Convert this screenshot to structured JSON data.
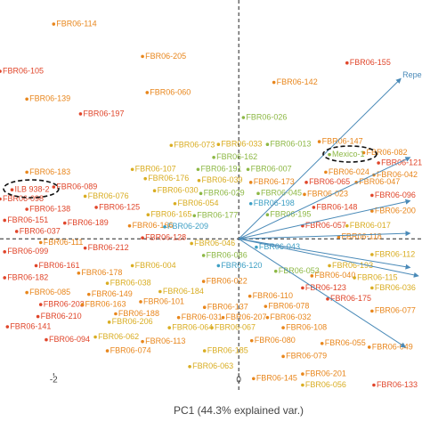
{
  "chart_data": {
    "type": "scatter",
    "xlabel": "PC1 (44.3% explained var.)",
    "xlim": [
      -2.58,
      1.98
    ],
    "ylim": [
      -1.44,
      2.58
    ],
    "xticks": [
      -2,
      0
    ],
    "arrow_color": "#4a8ab8",
    "arrows": [
      {
        "label": "Repe",
        "x": 1.75,
        "y": 1.73
      },
      {
        "x": 1.85,
        "y": 0.88
      },
      {
        "x": 1.85,
        "y": 0.41
      },
      {
        "x": 1.85,
        "y": 0.06
      },
      {
        "x": 1.85,
        "y": -0.31
      },
      {
        "x": 1.94,
        "y": -0.4
      },
      {
        "x": 1.8,
        "y": -1.17
      }
    ],
    "points": [
      {
        "label": "FBR06-114",
        "x": -2.0,
        "y": 2.32,
        "color": "#e8861c"
      },
      {
        "label": "FBR06-205",
        "x": -1.04,
        "y": 1.97,
        "color": "#e8861c"
      },
      {
        "label": "FBR06-105",
        "x": -2.58,
        "y": 1.81,
        "color": "#e0452a"
      },
      {
        "label": "FBR06-060",
        "x": -0.99,
        "y": 1.58,
        "color": "#e8861c"
      },
      {
        "label": "FBR06-139",
        "x": -2.29,
        "y": 1.51,
        "color": "#e8861c"
      },
      {
        "label": "FBR06-197",
        "x": -1.71,
        "y": 1.35,
        "color": "#e0452a"
      },
      {
        "label": "FBR06-155",
        "x": 1.17,
        "y": 1.9,
        "color": "#e0452a"
      },
      {
        "label": "FBR06-142",
        "x": 0.38,
        "y": 1.69,
        "color": "#e8861c"
      },
      {
        "label": "FBR06-026",
        "x": 0.05,
        "y": 1.31,
        "color": "#8db845"
      },
      {
        "label": "FBR06-073",
        "x": -0.73,
        "y": 1.01,
        "color": "#d9ad22"
      },
      {
        "label": "FBR06-033",
        "x": -0.22,
        "y": 1.02,
        "color": "#d9ad22"
      },
      {
        "label": "FBR06-013",
        "x": 0.31,
        "y": 1.02,
        "color": "#8db845"
      },
      {
        "label": "FBR06-147",
        "x": 0.87,
        "y": 1.05,
        "color": "#e8861c"
      },
      {
        "label": "FBR06-082",
        "x": 1.35,
        "y": 0.93,
        "color": "#e8861c"
      },
      {
        "label": "FBR06-183",
        "x": -2.29,
        "y": 0.72,
        "color": "#e8861c"
      },
      {
        "label": "FBR06-107",
        "x": -1.15,
        "y": 0.75,
        "color": "#d9ad22"
      },
      {
        "label": "FBR06-191",
        "x": -0.44,
        "y": 0.75,
        "color": "#8db845"
      },
      {
        "label": "FBR06-162",
        "x": -0.27,
        "y": 0.88,
        "color": "#8db845"
      },
      {
        "label": "FBR06-007",
        "x": 0.1,
        "y": 0.75,
        "color": "#8db845"
      },
      {
        "label": "FBR06-024",
        "x": 0.94,
        "y": 0.72,
        "color": "#e8861c"
      },
      {
        "label": "FBR06-121",
        "x": 1.51,
        "y": 0.82,
        "color": "#e0452a"
      },
      {
        "label": "FBR06-042",
        "x": 1.46,
        "y": 0.69,
        "color": "#e8861c"
      },
      {
        "label": "FBR06-176",
        "x": -1.01,
        "y": 0.65,
        "color": "#d9ad22"
      },
      {
        "label": "FBR06-039",
        "x": -0.43,
        "y": 0.63,
        "color": "#d9ad22"
      },
      {
        "label": "FBR06-173",
        "x": 0.13,
        "y": 0.61,
        "color": "#e8861c"
      },
      {
        "label": "FBR06-065",
        "x": 0.73,
        "y": 0.61,
        "color": "#e0452a"
      },
      {
        "label": "FBR06-047",
        "x": 1.27,
        "y": 0.61,
        "color": "#e8861c"
      },
      {
        "label": "FBR06-089",
        "x": -2.0,
        "y": 0.56,
        "color": "#e0452a"
      },
      {
        "label": "FBR06-076",
        "x": -1.66,
        "y": 0.46,
        "color": "#d9ad22"
      },
      {
        "label": "FBR06-030",
        "x": -0.91,
        "y": 0.52,
        "color": "#d9ad22"
      },
      {
        "label": "FBR06-029",
        "x": -0.41,
        "y": 0.49,
        "color": "#8db845"
      },
      {
        "label": "FBR06-045",
        "x": 0.21,
        "y": 0.49,
        "color": "#8db845"
      },
      {
        "label": "FBR06-023",
        "x": 0.71,
        "y": 0.48,
        "color": "#e8861c"
      },
      {
        "label": "FBR06-096",
        "x": 1.44,
        "y": 0.47,
        "color": "#e0452a"
      },
      {
        "label": "FBR06-098",
        "x": -2.58,
        "y": 0.43,
        "color": "#e0452a"
      },
      {
        "label": "FBR06-138",
        "x": -2.29,
        "y": 0.32,
        "color": "#e0452a"
      },
      {
        "label": "FBR06-125",
        "x": -1.54,
        "y": 0.34,
        "color": "#e0452a"
      },
      {
        "label": "FBR06-054",
        "x": -0.69,
        "y": 0.38,
        "color": "#d9ad22"
      },
      {
        "label": "FBR06-198",
        "x": 0.13,
        "y": 0.38,
        "color": "#3d9fc4"
      },
      {
        "label": "FBR06-148",
        "x": 0.81,
        "y": 0.34,
        "color": "#e0452a"
      },
      {
        "label": "FBR06-200",
        "x": 1.44,
        "y": 0.3,
        "color": "#e8861c"
      },
      {
        "label": "FBR06-151",
        "x": -2.53,
        "y": 0.2,
        "color": "#e0452a"
      },
      {
        "label": "FBR06-189",
        "x": -1.88,
        "y": 0.17,
        "color": "#e0452a"
      },
      {
        "label": "FBR06-165",
        "x": -0.98,
        "y": 0.26,
        "color": "#d9ad22"
      },
      {
        "label": "FBR06-177",
        "x": -0.48,
        "y": 0.25,
        "color": "#8db845"
      },
      {
        "label": "FBR06-195",
        "x": 0.31,
        "y": 0.26,
        "color": "#8db845"
      },
      {
        "label": "FBR06-037",
        "x": -2.4,
        "y": 0.08,
        "color": "#e0452a"
      },
      {
        "label": "FBR06-166",
        "x": -1.18,
        "y": 0.14,
        "color": "#e8861c"
      },
      {
        "label": "FBR06-209",
        "x": -0.8,
        "y": 0.13,
        "color": "#3d9fc4"
      },
      {
        "label": "FBR06-057",
        "x": 0.69,
        "y": 0.14,
        "color": "#e0452a"
      },
      {
        "label": "FBR06-017",
        "x": 1.17,
        "y": 0.14,
        "color": "#d9ad22"
      },
      {
        "label": "FBR06-128",
        "x": -1.04,
        "y": 0.01,
        "color": "#e0452a"
      },
      {
        "label": "FBR06-046",
        "x": -0.51,
        "y": -0.05,
        "color": "#d9ad22"
      },
      {
        "label": "FBR06-118",
        "x": 1.08,
        "y": 0.02,
        "color": "#e8861c"
      },
      {
        "label": "FBR06-111",
        "x": -2.14,
        "y": -0.04,
        "color": "#e8861c"
      },
      {
        "label": "FBR06-212",
        "x": -1.66,
        "y": -0.1,
        "color": "#e0452a"
      },
      {
        "label": "FBR06-043",
        "x": 0.19,
        "y": -0.09,
        "color": "#3d9fc4"
      },
      {
        "label": "FBR06-099",
        "x": -2.53,
        "y": -0.14,
        "color": "#e0452a"
      },
      {
        "label": "FBR06-086",
        "x": -0.38,
        "y": -0.18,
        "color": "#8db845"
      },
      {
        "label": "FBR06-112",
        "x": 1.44,
        "y": -0.17,
        "color": "#d9ad22"
      },
      {
        "label": "FBR06-161",
        "x": -2.19,
        "y": -0.29,
        "color": "#e0452a"
      },
      {
        "label": "FBR06-004",
        "x": -1.15,
        "y": -0.29,
        "color": "#d9ad22"
      },
      {
        "label": "FBR06-120",
        "x": -0.22,
        "y": -0.29,
        "color": "#3d9fc4"
      },
      {
        "label": "FBR06-053",
        "x": 0.4,
        "y": -0.35,
        "color": "#8db845"
      },
      {
        "label": "FBR06-193",
        "x": 0.98,
        "y": -0.29,
        "color": "#d9ad22"
      },
      {
        "label": "FBR06-178",
        "x": -1.73,
        "y": -0.37,
        "color": "#e8861c"
      },
      {
        "label": "FBR06-182",
        "x": -2.53,
        "y": -0.42,
        "color": "#e0452a"
      },
      {
        "label": "FBR06-038",
        "x": -1.42,
        "y": -0.48,
        "color": "#d9ad22"
      },
      {
        "label": "FBR06-022",
        "x": -0.38,
        "y": -0.46,
        "color": "#e8861c"
      },
      {
        "label": "FBR06-040",
        "x": 0.79,
        "y": -0.4,
        "color": "#e8861c"
      },
      {
        "label": "FBR06-115",
        "x": 1.25,
        "y": -0.42,
        "color": "#d9ad22"
      },
      {
        "label": "FBR06-184",
        "x": -0.85,
        "y": -0.57,
        "color": "#d9ad22"
      },
      {
        "label": "FBR06-110",
        "x": 0.12,
        "y": -0.62,
        "color": "#e8861c"
      },
      {
        "label": "FBR06-123",
        "x": 0.69,
        "y": -0.53,
        "color": "#e0452a"
      },
      {
        "label": "FBR06-036",
        "x": 1.44,
        "y": -0.53,
        "color": "#d9ad22"
      },
      {
        "label": "FBR06-085",
        "x": -2.29,
        "y": -0.58,
        "color": "#e8861c"
      },
      {
        "label": "FBR06-149",
        "x": -1.62,
        "y": -0.6,
        "color": "#e8861c"
      },
      {
        "label": "FBR06-175",
        "x": 0.96,
        "y": -0.65,
        "color": "#e0452a"
      },
      {
        "label": "FBR06-203",
        "x": -2.14,
        "y": -0.71,
        "color": "#e0452a"
      },
      {
        "label": "FBR06-163",
        "x": -1.69,
        "y": -0.71,
        "color": "#e8861c"
      },
      {
        "label": "FBR06-101",
        "x": -1.06,
        "y": -0.68,
        "color": "#e8861c"
      },
      {
        "label": "FBR06-137",
        "x": -0.37,
        "y": -0.74,
        "color": "#e8861c"
      },
      {
        "label": "FBR06-078",
        "x": 0.29,
        "y": -0.73,
        "color": "#e8861c"
      },
      {
        "label": "FBR06-210",
        "x": -2.17,
        "y": -0.84,
        "color": "#e0452a"
      },
      {
        "label": "FBR06-206",
        "x": -1.4,
        "y": -0.9,
        "color": "#d9ad22"
      },
      {
        "label": "FBR06-188",
        "x": -1.33,
        "y": -0.81,
        "color": "#e8861c"
      },
      {
        "label": "FBR06-031",
        "x": -0.65,
        "y": -0.85,
        "color": "#e8861c"
      },
      {
        "label": "FBR06-207",
        "x": -0.17,
        "y": -0.85,
        "color": "#e8861c"
      },
      {
        "label": "FBR06-032",
        "x": 0.31,
        "y": -0.85,
        "color": "#e8861c"
      },
      {
        "label": "FBR06-077",
        "x": 1.44,
        "y": -0.78,
        "color": "#e8861c"
      },
      {
        "label": "FBR06-141",
        "x": -2.5,
        "y": -0.95,
        "color": "#e0452a"
      },
      {
        "label": "FBR06-064",
        "x": -0.75,
        "y": -0.96,
        "color": "#d9ad22"
      },
      {
        "label": "FBR06-067",
        "x": -0.29,
        "y": -0.96,
        "color": "#d9ad22"
      },
      {
        "label": "FBR06-108",
        "x": 0.48,
        "y": -0.96,
        "color": "#e8861c"
      },
      {
        "label": "FBR06-094",
        "x": -2.08,
        "y": -1.09,
        "color": "#e0452a"
      },
      {
        "label": "FBR06-062",
        "x": -1.55,
        "y": -1.06,
        "color": "#d9ad22"
      },
      {
        "label": "FBR06-113",
        "x": -1.04,
        "y": -1.11,
        "color": "#e8861c"
      },
      {
        "label": "FBR06-080",
        "x": 0.14,
        "y": -1.1,
        "color": "#e8861c"
      },
      {
        "label": "FBR06-055",
        "x": 0.9,
        "y": -1.13,
        "color": "#e8861c"
      },
      {
        "label": "FBR06-049",
        "x": 1.41,
        "y": -1.17,
        "color": "#e8861c"
      },
      {
        "label": "FBR06-074",
        "x": -1.42,
        "y": -1.21,
        "color": "#e8861c"
      },
      {
        "label": "FBR06-185",
        "x": -0.37,
        "y": -1.21,
        "color": "#d9ad22"
      },
      {
        "label": "FBR06-079",
        "x": 0.48,
        "y": -1.27,
        "color": "#e8861c"
      },
      {
        "label": "FBR06-063",
        "x": -0.53,
        "y": -1.38,
        "color": "#d9ad22"
      },
      {
        "label": "FBR06-145",
        "x": 0.16,
        "y": -1.51,
        "color": "#e8861c"
      },
      {
        "label": "FBR06-201",
        "x": 0.69,
        "y": -1.46,
        "color": "#e8861c"
      },
      {
        "label": "FBR06-056",
        "x": 0.69,
        "y": -1.58,
        "color": "#d9ad22"
      },
      {
        "label": "FBR06-133",
        "x": 1.46,
        "y": -1.58,
        "color": "#e0452a"
      },
      {
        "label": "ILB 938-2",
        "x": -2.45,
        "y": 0.53,
        "color": "#e0452a"
      },
      {
        "label": "Mexico-1",
        "x": 0.98,
        "y": 0.91,
        "color": "#8db845"
      }
    ]
  }
}
